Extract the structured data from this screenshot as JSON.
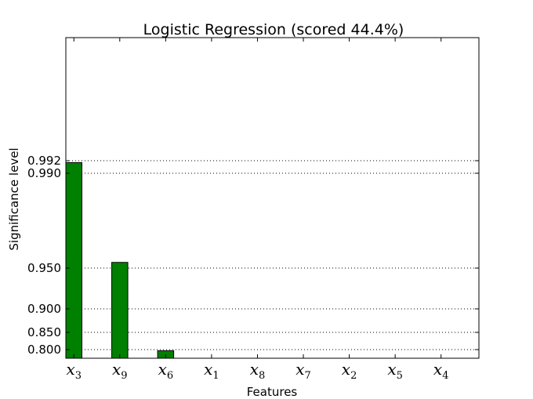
{
  "chart_data": {
    "type": "bar",
    "title": "Logistic Regression (scored 44.4%)",
    "xlabel": "Features",
    "ylabel": "Significance level",
    "categories": [
      {
        "base": "x",
        "sub": "3"
      },
      {
        "base": "x",
        "sub": "9"
      },
      {
        "base": "x",
        "sub": "6"
      },
      {
        "base": "x",
        "sub": "1"
      },
      {
        "base": "x",
        "sub": "8"
      },
      {
        "base": "x",
        "sub": "7"
      },
      {
        "base": "x",
        "sub": "2"
      },
      {
        "base": "x",
        "sub": "5"
      },
      {
        "base": "x",
        "sub": "4"
      }
    ],
    "values": [
      0.9917,
      0.9524,
      0.7975,
      0,
      0,
      0,
      0,
      0,
      0
    ],
    "y_ticks": [
      "0.800",
      "0.850",
      "0.900",
      "0.950",
      "0.990",
      "0.992"
    ],
    "y_tick_values": [
      0.8,
      0.85,
      0.9,
      0.95,
      0.99,
      0.992
    ],
    "grid": "horizontal dotted at y ticks",
    "bar_color": "#008000",
    "edge_color": "#000000"
  }
}
